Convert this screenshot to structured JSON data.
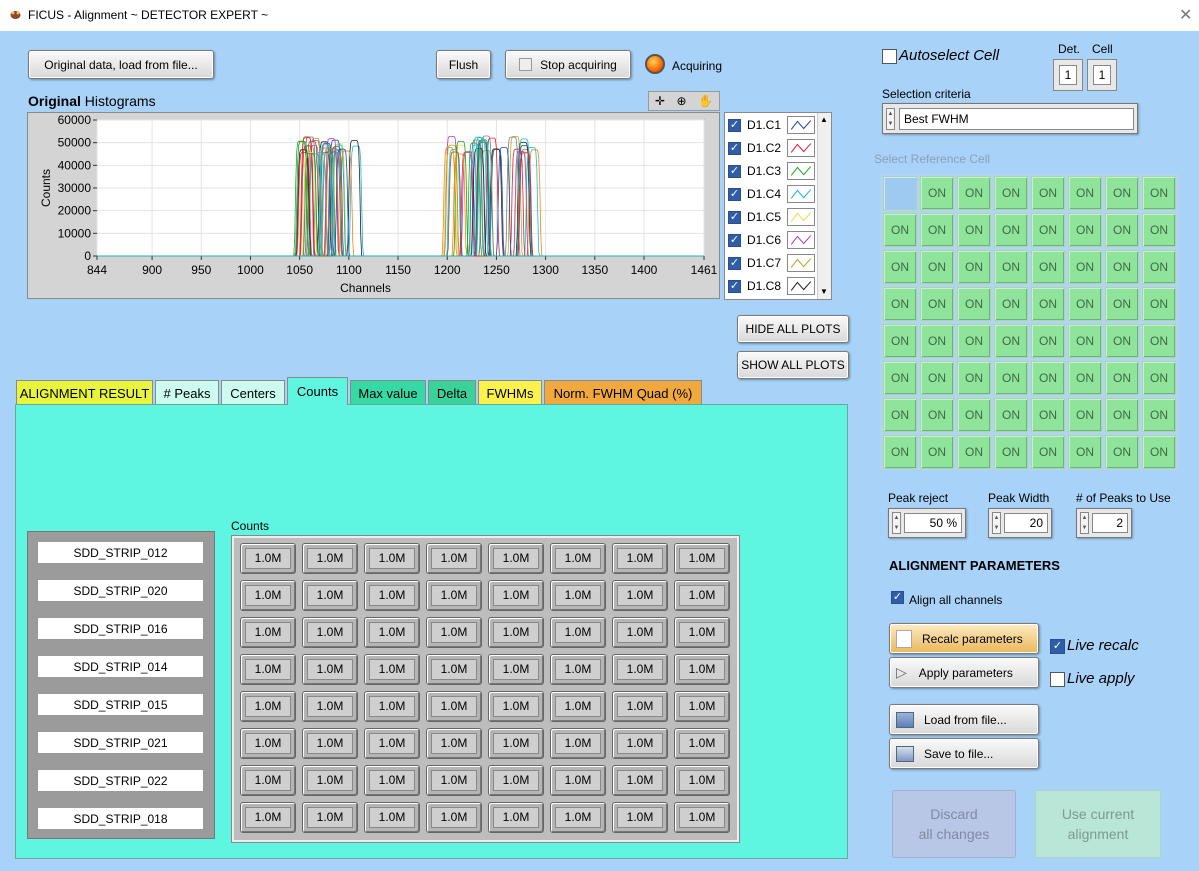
{
  "window": {
    "title": "FICUS - Alignment ~ DETECTOR EXPERT ~"
  },
  "toolbar": {
    "load_original": "Original data, load from file...",
    "flush": "Flush",
    "stop_acquiring": "Stop acquiring",
    "acquiring_label": "Acquiring"
  },
  "histogram": {
    "title_bold": "Original",
    "title_rest": " Histograms",
    "plot_tools": [
      "crosshair-icon",
      "zoom-icon",
      "pan-icon"
    ],
    "hide_all": "HIDE ALL PLOTS",
    "show_all": "SHOW ALL PLOTS"
  },
  "chart_data": {
    "type": "line",
    "title": "",
    "xlabel": "Channels",
    "ylabel": "Counts",
    "xlim": [
      844,
      1461
    ],
    "ylim": [
      0,
      60000
    ],
    "x_ticks": [
      "844",
      "900",
      "950",
      "1000",
      "1050",
      "1100",
      "1150",
      "1200",
      "1250",
      "1300",
      "1350",
      "1400",
      "1461"
    ],
    "y_ticks": [
      "60000",
      "50000",
      "40000",
      "30000",
      "20000",
      "10000",
      "0"
    ],
    "grid": true,
    "legend_position": "right",
    "peak_groups": [
      {
        "center_range": [
          1050,
          1110
        ],
        "height_range": [
          45000,
          53000
        ]
      },
      {
        "center_range": [
          1200,
          1290
        ],
        "height_range": [
          45000,
          53000
        ]
      }
    ],
    "series": [
      {
        "name": "D1.C1",
        "color": "#1f4fa8"
      },
      {
        "name": "D1.C2",
        "color": "#e0203a"
      },
      {
        "name": "D1.C3",
        "color": "#1fa82a"
      },
      {
        "name": "D1.C4",
        "color": "#19b7d6"
      },
      {
        "name": "D1.C5",
        "color": "#e3e04a"
      },
      {
        "name": "D1.C6",
        "color": "#b03fc0"
      },
      {
        "name": "D1.C7",
        "color": "#b7a81e"
      },
      {
        "name": "D1.C8",
        "color": "#222222"
      }
    ]
  },
  "tabs": [
    {
      "label": "ALIGNMENT RESULT",
      "color": "#e8f53c"
    },
    {
      "label": "# Peaks",
      "color": "#ccfbef"
    },
    {
      "label": "Centers",
      "color": "#ccfbef"
    },
    {
      "label": "Counts",
      "color": "#5ef5e1"
    },
    {
      "label": "Max value",
      "color": "#35d9a6"
    },
    {
      "label": "Delta",
      "color": "#3bd19b"
    },
    {
      "label": "FWHMs",
      "color": "#fbf24e"
    },
    {
      "label": "Norm. FWHM Quad (%)",
      "color": "#f1a93d"
    }
  ],
  "counts_panel": {
    "label": "Counts",
    "strips": [
      "SDD_STRIP_012",
      "SDD_STRIP_020",
      "SDD_STRIP_016",
      "SDD_STRIP_014",
      "SDD_STRIP_015",
      "SDD_STRIP_021",
      "SDD_STRIP_022",
      "SDD_STRIP_018"
    ],
    "cell_value": "1.0M",
    "rows": 8,
    "cols": 8
  },
  "right": {
    "autoselect_label": "Autoselect Cell",
    "det_label": "Det.",
    "cell_label": "Cell",
    "det_value": "1",
    "cell_value": "1",
    "selection_criteria_label": "Selection criteria",
    "selection_criteria_value": "Best FWHM",
    "select_ref_label": "Select Reference Cell",
    "ref_cell_text": "ON",
    "peak_reject_label": "Peak reject",
    "peak_reject_value": "50 %",
    "peak_width_label": "Peak Width",
    "peak_width_value": "20",
    "peaks_to_use_label": "# of Peaks to Use",
    "peaks_to_use_value": "2",
    "alignment_params_title": "ALIGNMENT PARAMETERS",
    "align_all_label": "Align all channels",
    "recalc": "Recalc parameters",
    "apply": "Apply parameters",
    "live_recalc": "Live recalc",
    "live_apply": "Live apply",
    "load_file": "Load from file...",
    "save_file": "Save to file...",
    "discard_line1": "Discard",
    "discard_line2": "all changes",
    "use_current_line1": "Use current",
    "use_current_line2": "alignment"
  }
}
